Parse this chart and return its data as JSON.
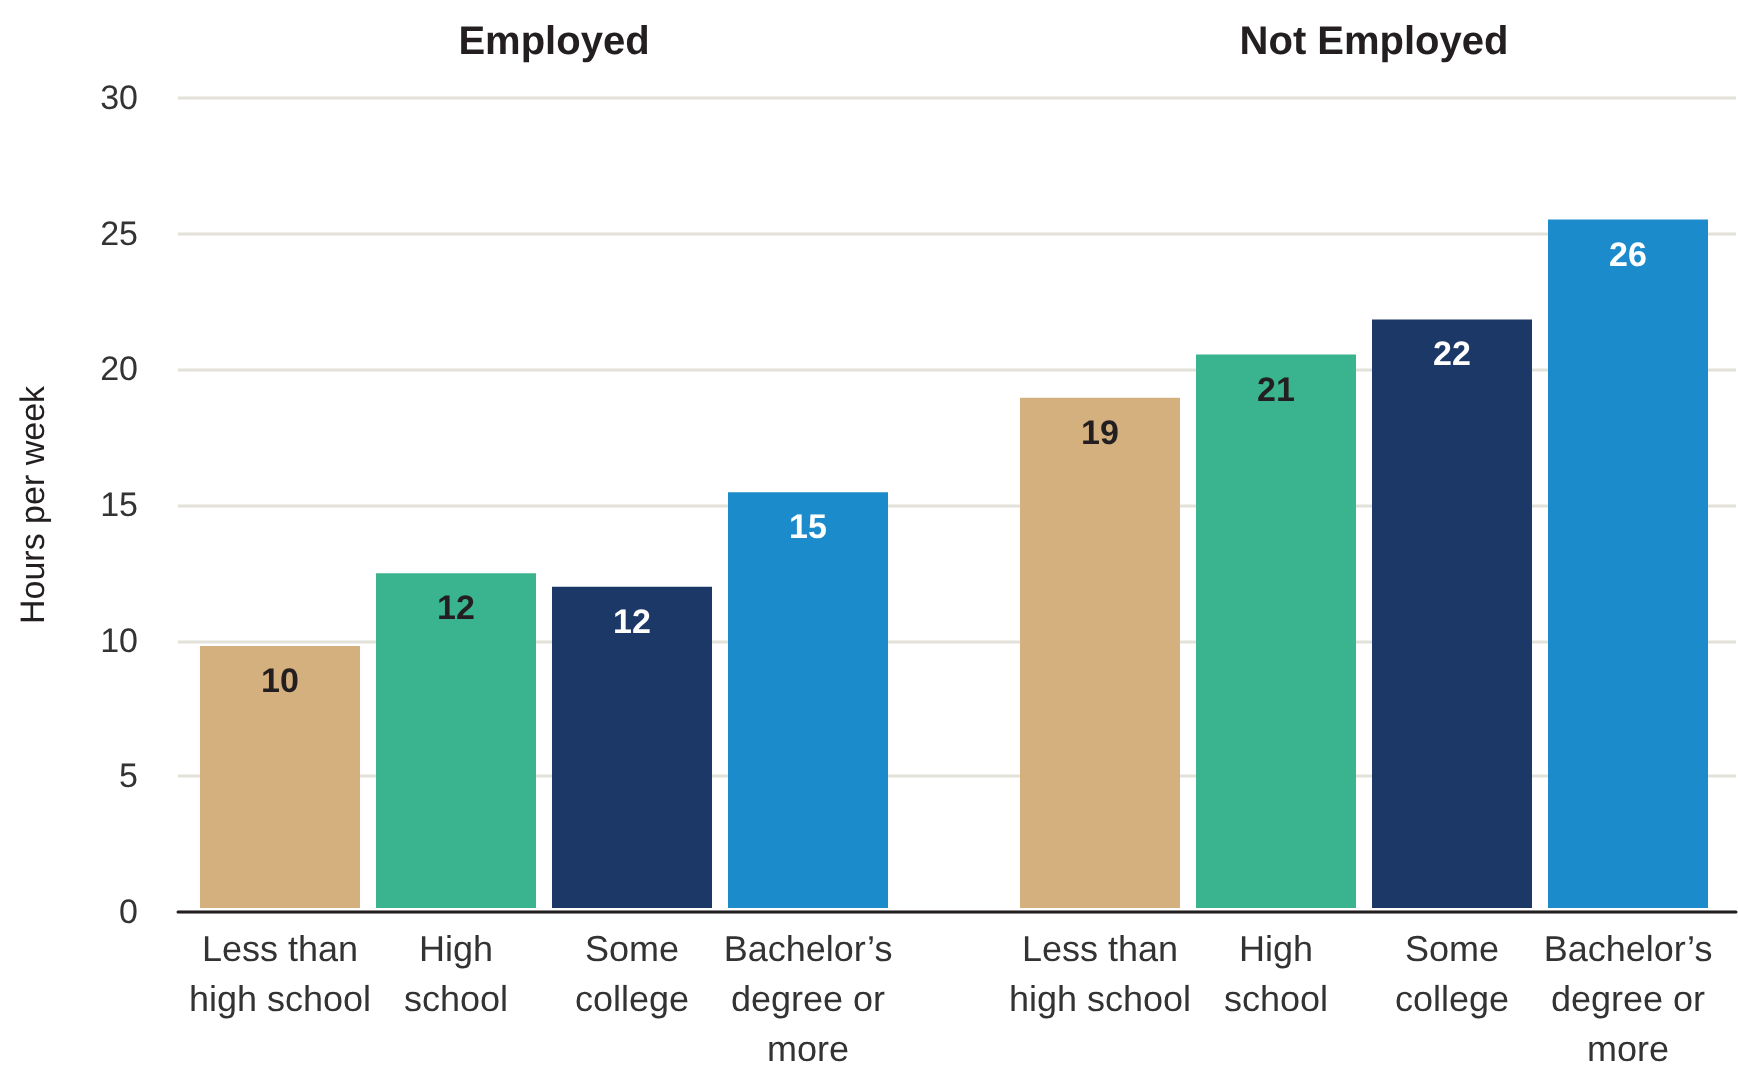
{
  "chart_data": [
    {
      "type": "bar",
      "title": "Employed",
      "ylabel": "Hours per week",
      "categories": [
        "Less than\nhigh school",
        "High\nschool",
        "Some\ncollege",
        "Bachelor’s\ndegree or\nmore"
      ],
      "values": [
        9.7,
        12.4,
        11.9,
        15.4
      ],
      "colors": [
        "#d5b07f",
        "#3ab48e",
        "#1b3867",
        "#1b8bcb"
      ],
      "value_labels": [
        "10",
        "12",
        "12",
        "15"
      ],
      "ylim": [
        0,
        30
      ],
      "yticks": [
        0,
        5,
        10,
        15,
        20,
        25,
        30
      ],
      "grid": "y"
    },
    {
      "type": "bar",
      "title": "Not Employed",
      "categories": [
        "Less than\nhigh school",
        "High\nschool",
        "Some\ncollege",
        "Bachelor’s\ndegree or\nmore"
      ],
      "values": [
        18.9,
        20.5,
        21.8,
        25.5
      ],
      "colors": [
        "#d5b07f",
        "#3ab48e",
        "#1b3867",
        "#1b8bcb"
      ],
      "value_labels": [
        "19",
        "21",
        "22",
        "26"
      ],
      "ylim": [
        0,
        30
      ],
      "yticks": [
        0,
        5,
        10,
        15,
        20,
        25,
        30
      ],
      "grid": "y",
      "tick_labels": "x"
    }
  ]
}
